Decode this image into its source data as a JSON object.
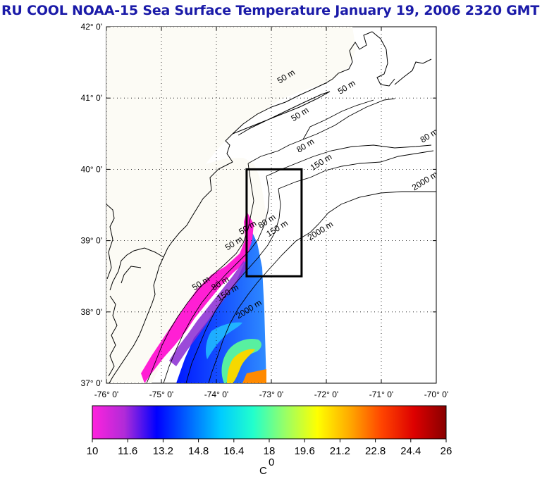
{
  "title": "RU COOL  NOAA-15 Sea Surface Temperature January 19, 2006 2320 GMT",
  "map": {
    "lon_range": [
      -76,
      -70
    ],
    "lat_range": [
      37,
      42
    ],
    "lat_ticks": [
      {
        "value": 42,
        "label": "42° 0'"
      },
      {
        "value": 41,
        "label": "41° 0'"
      },
      {
        "value": 40,
        "label": "40° 0'"
      },
      {
        "value": 39,
        "label": "39° 0'"
      },
      {
        "value": 38,
        "label": "38° 0'"
      },
      {
        "value": 37,
        "label": "37° 0'"
      }
    ],
    "lon_ticks": [
      {
        "value": -76,
        "label": "-76° 0'"
      },
      {
        "value": -75,
        "label": "-75° 0'"
      },
      {
        "value": -74,
        "label": "-74° 0'"
      },
      {
        "value": -73,
        "label": "-73° 0'"
      },
      {
        "value": -72,
        "label": "-72° 0'"
      },
      {
        "value": -71,
        "label": "-71° 0'"
      },
      {
        "value": -70,
        "label": "-70° 0'"
      }
    ],
    "grid": "dotted",
    "study_box": {
      "lon": [
        -73.45,
        -72.45
      ],
      "lat": [
        38.5,
        40.0
      ]
    },
    "contour_labels": [
      {
        "text": "50 m",
        "lon": -72.85,
        "lat": 41.2
      },
      {
        "text": "50 m",
        "lon": -71.75,
        "lat": 41.05
      },
      {
        "text": "50 m",
        "lon": -72.6,
        "lat": 40.67
      },
      {
        "text": "80 m",
        "lon": -72.5,
        "lat": 40.23
      },
      {
        "text": "150 m",
        "lon": -72.25,
        "lat": 39.98
      },
      {
        "text": "80 m",
        "lon": -70.25,
        "lat": 40.37
      },
      {
        "text": "2000 m",
        "lon": -70.4,
        "lat": 39.7
      },
      {
        "text": "80 m",
        "lon": -73.2,
        "lat": 39.17
      },
      {
        "text": "150 m",
        "lon": -73.05,
        "lat": 39.05
      },
      {
        "text": "2000 m",
        "lon": -72.3,
        "lat": 39.0
      },
      {
        "text": "50 m",
        "lon": -73.8,
        "lat": 38.86
      },
      {
        "text": "50 m",
        "lon": -73.55,
        "lat": 39.08
      },
      {
        "text": "50 m",
        "lon": -74.4,
        "lat": 38.3
      },
      {
        "text": "80 m",
        "lon": -74.05,
        "lat": 38.3
      },
      {
        "text": "150 m",
        "lon": -73.95,
        "lat": 38.15
      },
      {
        "text": "2000 m",
        "lon": -73.6,
        "lat": 37.9
      }
    ]
  },
  "colorbar": {
    "min": 10,
    "max": 26,
    "tick_labels": [
      "10",
      "11.6",
      "13.2",
      "14.8",
      "16.4",
      "18",
      "19.6",
      "21.2",
      "22.8",
      "24.4",
      "26"
    ],
    "unit_label": "C",
    "unit_superscript": "0",
    "colors": [
      "#ff22dd",
      "#b02bd8",
      "#0000ff",
      "#0066ff",
      "#00ccff",
      "#22ffcc",
      "#99ff66",
      "#ffff00",
      "#ffaa00",
      "#ff4400",
      "#dd0000",
      "#880000"
    ]
  }
}
